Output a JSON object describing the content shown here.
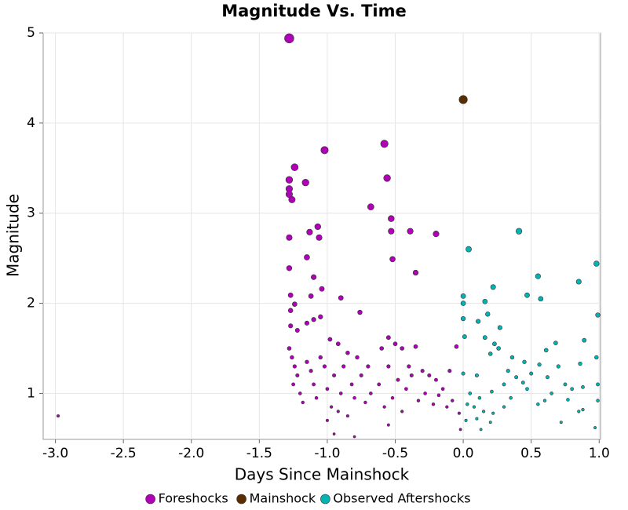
{
  "chart_data": {
    "type": "scatter",
    "title": "Magnitude Vs. Time",
    "x_label": "Days Since Mainshock",
    "y_label": "Magnitude",
    "xlim": [
      -3.09,
      1.01
    ],
    "ylim": [
      0.49,
      5
    ],
    "xticks": [
      {
        "value": -3,
        "label": "-3.0"
      },
      -2.5,
      {
        "value": -2,
        "label": "-2.0"
      },
      -1.5,
      {
        "value": -1,
        "label": "-1.0"
      },
      -0.5,
      {
        "value": 0,
        "label": "0.0"
      },
      0.5,
      {
        "value": 1,
        "label": "1.0"
      }
    ],
    "yticks": [
      1,
      2,
      3,
      4,
      5
    ],
    "grid": true,
    "legend": "bottom",
    "series": [
      {
        "name": "Foreshocks",
        "color": "#b000b8",
        "x": [
          -1.28,
          -1.02,
          -0.58,
          -1.24,
          -1.28,
          -1.16,
          -1.28,
          -1.28,
          -1.26,
          -0.56,
          -0.68,
          -0.53,
          -0.53,
          -0.39,
          -0.2,
          -1.07,
          -1.13,
          -1.06,
          -1.28,
          -1.15,
          -0.52,
          -0.35,
          -1.28,
          -1.1,
          -1.04,
          -1.27,
          -1.12,
          -1.24,
          -0.9,
          -1.27,
          -0.76,
          -1.27,
          -1.22,
          -1.15,
          -1.1,
          -1.05,
          -0.98,
          -0.92,
          -0.85,
          -0.78,
          -0.7,
          -0.6,
          -0.55,
          -0.5,
          -0.45,
          -0.4,
          -0.35,
          -0.3,
          -0.25,
          -0.2,
          -0.15,
          -0.1,
          -0.05,
          -1.28,
          -1.26,
          -1.24,
          -1.22,
          -1.25,
          -1.2,
          -1.18,
          -1.15,
          -1.12,
          -1.1,
          -1.08,
          -1.05,
          -1.02,
          -1.0,
          -0.97,
          -0.95,
          -0.92,
          -0.9,
          -0.88,
          -0.85,
          -0.82,
          -0.8,
          -0.75,
          -0.72,
          -0.68,
          -0.62,
          -0.58,
          -0.55,
          -0.52,
          -0.48,
          -0.45,
          -0.42,
          -0.38,
          -0.33,
          -0.28,
          -0.22,
          -0.18,
          -0.12,
          -0.08,
          -0.03,
          -0.95,
          -0.8,
          -0.55,
          -2.98,
          -0.02,
          -1.0
        ],
        "values": [
          4.94,
          3.7,
          3.77,
          3.51,
          3.37,
          3.34,
          3.27,
          3.21,
          3.15,
          3.39,
          3.07,
          2.94,
          2.8,
          2.8,
          2.77,
          2.85,
          2.79,
          2.73,
          2.73,
          2.51,
          2.49,
          2.34,
          2.39,
          2.29,
          2.16,
          2.09,
          2.08,
          1.99,
          2.06,
          1.92,
          1.9,
          1.75,
          1.7,
          1.78,
          1.82,
          1.85,
          1.6,
          1.55,
          1.45,
          1.4,
          1.3,
          1.5,
          1.62,
          1.55,
          1.5,
          1.3,
          1.52,
          1.25,
          1.2,
          1.15,
          1.05,
          1.25,
          1.52,
          1.5,
          1.4,
          1.3,
          1.2,
          1.1,
          1.0,
          0.9,
          1.35,
          1.25,
          1.1,
          0.95,
          1.4,
          1.3,
          1.05,
          0.85,
          1.2,
          0.8,
          1.0,
          1.3,
          0.75,
          1.1,
          0.95,
          1.2,
          0.9,
          1.0,
          1.1,
          0.85,
          1.3,
          0.95,
          1.15,
          0.8,
          1.05,
          1.2,
          0.92,
          1.0,
          0.88,
          0.98,
          0.85,
          0.92,
          0.78,
          0.55,
          0.52,
          0.65,
          0.75,
          0.6,
          0.7
        ]
      },
      {
        "name": "Mainshock",
        "color": "#5a2d00",
        "x": [
          0
        ],
        "values": [
          4.26
        ]
      },
      {
        "name": "Observed Aftershocks",
        "color": "#00b4b4",
        "x": [
          0.04,
          0.41,
          0.98,
          0.55,
          0.85,
          0.22,
          0.47,
          0.57,
          0.0,
          0.0,
          0.16,
          0.99,
          0.0,
          0.11,
          0.18,
          0.27,
          0.01,
          0.16,
          0.23,
          0.68,
          0.89,
          0.61,
          0.2,
          0.26,
          0.36,
          0.45,
          0.56,
          0.7,
          0.86,
          0.98,
          0.0,
          0.1,
          0.33,
          0.39,
          0.5,
          0.62,
          0.75,
          0.3,
          0.44,
          0.05,
          0.12,
          0.21,
          0.35,
          0.47,
          0.65,
          0.8,
          0.88,
          0.99,
          0.03,
          0.08,
          0.15,
          0.22,
          0.3,
          0.55,
          0.6,
          0.77,
          0.88,
          0.99,
          0.02,
          0.1,
          0.2,
          0.13,
          0.85,
          0.97,
          0.72
        ],
        "values": [
          2.6,
          2.8,
          2.44,
          2.3,
          2.24,
          2.18,
          2.09,
          2.05,
          2.08,
          2.0,
          2.02,
          1.87,
          1.83,
          1.8,
          1.88,
          1.73,
          1.63,
          1.62,
          1.55,
          1.56,
          1.59,
          1.48,
          1.44,
          1.5,
          1.4,
          1.35,
          1.32,
          1.3,
          1.33,
          1.4,
          1.22,
          1.2,
          1.25,
          1.18,
          1.22,
          1.18,
          1.1,
          1.1,
          1.12,
          1.0,
          0.95,
          1.02,
          0.95,
          1.05,
          1.0,
          1.05,
          1.07,
          1.1,
          0.88,
          0.85,
          0.8,
          0.78,
          0.85,
          0.88,
          0.92,
          0.93,
          0.82,
          0.92,
          0.7,
          0.72,
          0.68,
          0.6,
          0.8,
          0.62,
          0.68
        ]
      }
    ]
  }
}
